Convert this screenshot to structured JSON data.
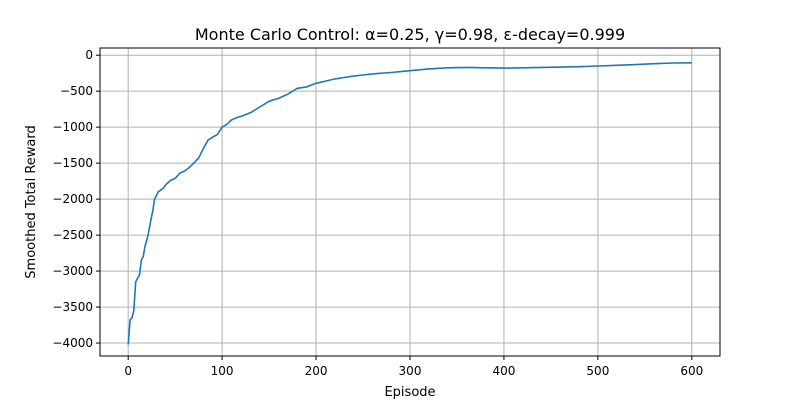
{
  "chart_data": {
    "type": "line",
    "title": "Monte Carlo Control: α=0.25, γ=0.98, ε-decay=0.999",
    "xlabel": "Episode",
    "ylabel": "Smoothed Total Reward",
    "xlim": [
      -30,
      630
    ],
    "ylim": [
      -4180,
      100
    ],
    "xticks": [
      0,
      100,
      200,
      300,
      400,
      500,
      600
    ],
    "yticks": [
      0,
      -500,
      -1000,
      -1500,
      -2000,
      -2500,
      -3000,
      -3500,
      -4000
    ],
    "grid": true,
    "colors": {
      "line": "#1f77b4",
      "grid": "#b0b0b0",
      "axes": "#000000"
    },
    "series": [
      {
        "x": [
          0,
          2,
          4,
          6,
          8,
          10,
          12,
          14,
          16,
          18,
          20,
          22,
          24,
          26,
          28,
          30,
          32,
          34,
          36,
          38,
          40,
          45,
          50,
          55,
          60,
          65,
          70,
          75,
          80,
          85,
          90,
          95,
          100,
          105,
          110,
          115,
          120,
          130,
          140,
          150,
          160,
          170,
          180,
          190,
          200,
          210,
          220,
          230,
          240,
          250,
          260,
          280,
          300,
          320,
          340,
          360,
          380,
          400,
          420,
          440,
          460,
          480,
          500,
          520,
          540,
          560,
          580,
          600
        ],
        "y": [
          -4020,
          -3680,
          -3650,
          -3550,
          -3150,
          -3100,
          -3050,
          -2850,
          -2800,
          -2650,
          -2560,
          -2450,
          -2300,
          -2180,
          -2000,
          -1950,
          -1900,
          -1880,
          -1860,
          -1840,
          -1800,
          -1740,
          -1710,
          -1640,
          -1610,
          -1560,
          -1500,
          -1430,
          -1300,
          -1180,
          -1140,
          -1100,
          -1000,
          -960,
          -900,
          -870,
          -850,
          -800,
          -720,
          -640,
          -600,
          -540,
          -460,
          -440,
          -390,
          -360,
          -330,
          -310,
          -290,
          -275,
          -260,
          -240,
          -215,
          -190,
          -175,
          -170,
          -175,
          -180,
          -175,
          -170,
          -165,
          -160,
          -150,
          -140,
          -130,
          -118,
          -108,
          -105
        ]
      }
    ]
  }
}
